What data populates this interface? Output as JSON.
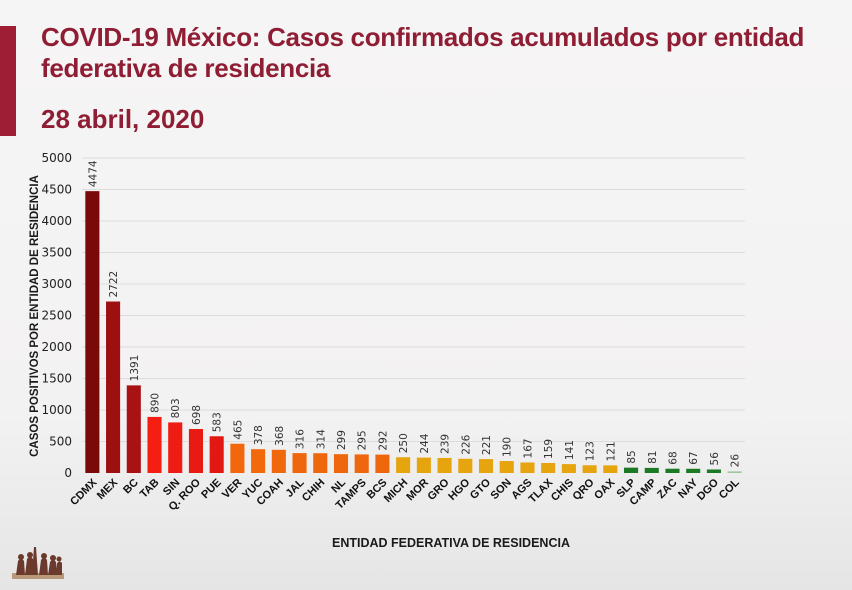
{
  "header": {
    "title": "COVID-19 México: Casos confirmados acumulados por entidad federativa de residencia",
    "date": "28 abril, 2020",
    "accent_color": "#9e1f35"
  },
  "logo": {
    "icon": "historic-figures-logo-icon"
  },
  "chart_data": {
    "type": "bar",
    "title": "COVID-19 México: Casos confirmados acumulados por entidad federativa de residencia",
    "subtitle": "28 abril, 2020",
    "xlabel": "ENTIDAD FEDERATIVA DE RESIDENCIA",
    "ylabel": "CASOS POSITIVOS POR ENTIDAD DE RESIDENCIA",
    "ylim": [
      0,
      5000
    ],
    "yticks": [
      0,
      500,
      1000,
      1500,
      2000,
      2500,
      3000,
      3500,
      4000,
      4500,
      5000
    ],
    "grid": true,
    "legend": "none",
    "categories": [
      "CDMX",
      "MEX",
      "BC",
      "TAB",
      "SIN",
      "Q. ROO",
      "PUE",
      "VER",
      "YUC",
      "COAH",
      "JAL",
      "CHIH",
      "NL",
      "TAMPS",
      "BCS",
      "MICH",
      "MOR",
      "GRO",
      "HGO",
      "GTO",
      "SON",
      "AGS",
      "TLAX",
      "CHIS",
      "QRO",
      "OAX",
      "SLP",
      "CAMP",
      "ZAC",
      "NAY",
      "DGO",
      "COL"
    ],
    "values": [
      4474,
      2722,
      1391,
      890,
      803,
      698,
      583,
      465,
      378,
      368,
      316,
      314,
      299,
      295,
      292,
      250,
      244,
      239,
      226,
      221,
      190,
      167,
      159,
      141,
      123,
      121,
      85,
      81,
      68,
      67,
      56,
      26
    ],
    "colors": [
      "#7a0a0a",
      "#9e1010",
      "#a81212",
      "#f41f12",
      "#ee1c12",
      "#e81a12",
      "#e41812",
      "#f2670c",
      "#f2690c",
      "#f0680c",
      "#ef670c",
      "#ef670c",
      "#ef670c",
      "#ef670c",
      "#ef670c",
      "#e6a40f",
      "#e6a40f",
      "#e6a40f",
      "#e6a40f",
      "#e6a40f",
      "#e6a40f",
      "#e6a40f",
      "#e6a40f",
      "#e6a40f",
      "#e6a40f",
      "#e6a40f",
      "#1c7a24",
      "#1c7a24",
      "#1c7a24",
      "#1c7a24",
      "#1c7a24",
      "#9ec79e"
    ]
  }
}
